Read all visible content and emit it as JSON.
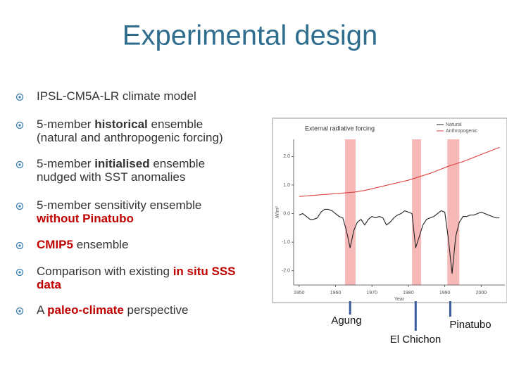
{
  "title": "Experimental design",
  "bullets": [
    {
      "lines": [
        [
          "IPSL-CM5A-LR climate model"
        ]
      ]
    },
    {
      "lines": [
        [
          "5-member ",
          "historical",
          " ensemble"
        ],
        [
          "(natural and anthropogenic forcing)"
        ]
      ]
    },
    {
      "lines": [
        [
          "5-member ",
          "initialised",
          " ensemble"
        ],
        [
          "nudged with SST anomalies"
        ]
      ]
    },
    {
      "lines": [
        [
          "5-member sensitivity ensemble"
        ],
        [
          "without Pinatubo"
        ]
      ]
    },
    {
      "lines": [
        [
          "CMIP5",
          " ensemble"
        ]
      ]
    },
    {
      "lines": [
        [
          "Comparison with existing ",
          "in situ SSS"
        ],
        [
          "data"
        ]
      ]
    },
    {
      "lines": [
        [
          "A ",
          "paleo-climate",
          " perspective"
        ]
      ]
    }
  ],
  "chart_data": {
    "type": "line",
    "title": "External radiative forcing",
    "x_label": "Year",
    "y_label": "W/m²",
    "x": [
      1950,
      1951,
      1952,
      1953,
      1954,
      1955,
      1956,
      1957,
      1958,
      1959,
      1960,
      1961,
      1962,
      1963,
      1964,
      1965,
      1966,
      1967,
      1968,
      1969,
      1970,
      1971,
      1972,
      1973,
      1974,
      1975,
      1976,
      1977,
      1978,
      1979,
      1980,
      1981,
      1982,
      1983,
      1984,
      1985,
      1986,
      1987,
      1988,
      1989,
      1990,
      1991,
      1992,
      1993,
      1994,
      1995,
      1996,
      1997,
      1998,
      1999,
      2000,
      2001,
      2002,
      2003,
      2004,
      2005
    ],
    "series": [
      {
        "name": "Natural",
        "color": "#222222",
        "values": [
          -0.05,
          0,
          -0.1,
          -0.2,
          -0.2,
          -0.15,
          0.05,
          0.15,
          0.15,
          0.1,
          0,
          -0.1,
          -0.15,
          -0.6,
          -1.2,
          -0.6,
          -0.3,
          -0.2,
          -0.4,
          -0.2,
          -0.1,
          -0.15,
          -0.1,
          -0.15,
          -0.4,
          -0.3,
          -0.15,
          -0.05,
          0,
          0.1,
          0.05,
          0,
          -1.2,
          -0.8,
          -0.4,
          -0.2,
          -0.15,
          -0.1,
          0,
          0.1,
          0.05,
          -0.9,
          -2.1,
          -0.8,
          -0.3,
          -0.1,
          -0.1,
          -0.05,
          -0.05,
          0,
          0.05,
          0,
          -0.05,
          -0.1,
          -0.15,
          -0.15
        ]
      },
      {
        "name": "Anthropogenic",
        "color": "#e04040",
        "values": [
          0.6,
          0.61,
          0.62,
          0.63,
          0.64,
          0.65,
          0.66,
          0.67,
          0.68,
          0.69,
          0.7,
          0.71,
          0.72,
          0.73,
          0.74,
          0.75,
          0.77,
          0.79,
          0.81,
          0.84,
          0.87,
          0.9,
          0.93,
          0.96,
          0.99,
          1.02,
          1.05,
          1.08,
          1.11,
          1.14,
          1.17,
          1.21,
          1.25,
          1.29,
          1.33,
          1.37,
          1.41,
          1.46,
          1.51,
          1.56,
          1.61,
          1.66,
          1.7,
          1.74,
          1.78,
          1.82,
          1.87,
          1.92,
          1.97,
          2.02,
          2.07,
          2.12,
          2.17,
          2.22,
          2.27,
          2.32
        ]
      }
    ],
    "xlim": [
      1948.5,
      2006.5
    ],
    "ylim": [
      -2.5,
      2.6
    ],
    "xticks": [
      1950,
      1960,
      1970,
      1980,
      1990,
      2000
    ],
    "yticks": [
      {
        "value": 2,
        "label": "2.0"
      },
      {
        "value": 1,
        "label": "1.0"
      },
      {
        "value": 0,
        "label": "0.0"
      },
      {
        "value": -1,
        "label": "-1.0"
      },
      {
        "value": -2,
        "label": "-2.0"
      }
    ],
    "highlight_color": "#f7b8b8",
    "highlight_periods": [
      [
        1962.6,
        1965.5
      ],
      [
        1981,
        1983.5
      ],
      [
        1990.7,
        1994
      ]
    ],
    "annotations": [
      {
        "label": "Agung",
        "x": 1964
      },
      {
        "label": "El Chichon",
        "x": 1982
      },
      {
        "label": "Pinatubo",
        "x": 1991.5
      }
    ],
    "annotation_color": "#3a5a9a"
  }
}
